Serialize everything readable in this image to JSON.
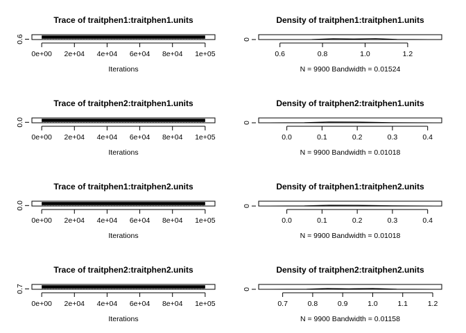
{
  "chart_data": [
    {
      "type": "line",
      "title": "Trace of traitphen1:traitphen1.units",
      "xlabel": "Iterations",
      "x_ticks": [
        "0e+00",
        "2e+04",
        "4e+04",
        "6e+04",
        "8e+04",
        "1e+05"
      ],
      "x_tick_values": [
        0,
        20000,
        40000,
        60000,
        80000,
        100000
      ],
      "xlim": [
        -6000,
        106000
      ],
      "y_ticks": [
        "0.6"
      ],
      "y_tick_values": [
        0.6
      ],
      "ylim": [
        0.55,
        1.35
      ],
      "grid": false,
      "series": [
        {
          "x": [
            0,
            100000
          ],
          "y": [
            0.6,
            0.6
          ]
        }
      ]
    },
    {
      "type": "area",
      "title": "Density of traitphen1:traitphen1.units",
      "xlabel": "N = 9900   Bandwidth = 0.01524",
      "x_ticks": [
        "0.6",
        "0.8",
        "1.0",
        "1.2"
      ],
      "x_tick_values": [
        0.6,
        0.8,
        1.0,
        1.2
      ],
      "xlim": [
        0.5,
        1.36
      ],
      "y_ticks": [
        "0"
      ],
      "y_tick_values": [
        0
      ],
      "ylim": [
        0,
        6
      ],
      "grid": false,
      "series": [
        {
          "x": [
            0.55,
            0.75,
            0.85,
            0.95,
            1.05,
            1.15,
            1.3
          ],
          "y": [
            0,
            0.1,
            1.0,
            0.8,
            1.2,
            0.2,
            0
          ]
        }
      ]
    },
    {
      "type": "line",
      "title": "Trace of traitphen2:traitphen1.units",
      "xlabel": "Iterations",
      "x_ticks": [
        "0e+00",
        "2e+04",
        "4e+04",
        "6e+04",
        "8e+04",
        "1e+05"
      ],
      "x_tick_values": [
        0,
        20000,
        40000,
        60000,
        80000,
        100000
      ],
      "xlim": [
        -6000,
        106000
      ],
      "y_ticks": [
        "0.0"
      ],
      "y_tick_values": [
        0.0
      ],
      "ylim": [
        -0.05,
        0.45
      ],
      "grid": false,
      "series": [
        {
          "x": [
            0,
            100000
          ],
          "y": [
            0.0,
            0.0
          ]
        }
      ]
    },
    {
      "type": "area",
      "title": "Density of traitphen2:traitphen1.units",
      "xlabel": "N = 9900   Bandwidth = 0.01018",
      "x_ticks": [
        "0.0",
        "0.1",
        "0.2",
        "0.3",
        "0.4"
      ],
      "x_tick_values": [
        0.0,
        0.1,
        0.2,
        0.3,
        0.4
      ],
      "xlim": [
        -0.08,
        0.44
      ],
      "y_ticks": [
        "0"
      ],
      "y_tick_values": [
        0
      ],
      "ylim": [
        0,
        6
      ],
      "grid": false,
      "series": [
        {
          "x": [
            -0.05,
            0.05,
            0.12,
            0.2,
            0.3,
            0.42
          ],
          "y": [
            0,
            0.2,
            1.0,
            0.9,
            0.3,
            0
          ]
        }
      ]
    },
    {
      "type": "line",
      "title": "Trace of traitphen1:traitphen2.units",
      "xlabel": "Iterations",
      "x_ticks": [
        "0e+00",
        "2e+04",
        "4e+04",
        "6e+04",
        "8e+04",
        "1e+05"
      ],
      "x_tick_values": [
        0,
        20000,
        40000,
        60000,
        80000,
        100000
      ],
      "xlim": [
        -6000,
        106000
      ],
      "y_ticks": [
        "0.0"
      ],
      "y_tick_values": [
        0.0
      ],
      "ylim": [
        -0.05,
        0.45
      ],
      "grid": false,
      "series": [
        {
          "x": [
            0,
            100000
          ],
          "y": [
            0.0,
            0.0
          ]
        }
      ]
    },
    {
      "type": "area",
      "title": "Density of traitphen1:traitphen2.units",
      "xlabel": "N = 9900   Bandwidth = 0.01018",
      "x_ticks": [
        "0.0",
        "0.1",
        "0.2",
        "0.3",
        "0.4"
      ],
      "x_tick_values": [
        0.0,
        0.1,
        0.2,
        0.3,
        0.4
      ],
      "xlim": [
        -0.08,
        0.44
      ],
      "y_ticks": [
        "0"
      ],
      "y_tick_values": [
        0
      ],
      "ylim": [
        0,
        6
      ],
      "grid": false,
      "series": [
        {
          "x": [
            -0.05,
            0.05,
            0.12,
            0.2,
            0.3,
            0.42
          ],
          "y": [
            0,
            0.2,
            1.0,
            0.9,
            0.3,
            0
          ]
        }
      ]
    },
    {
      "type": "line",
      "title": "Trace of traitphen2:traitphen2.units",
      "xlabel": "Iterations",
      "x_ticks": [
        "0e+00",
        "2e+04",
        "4e+04",
        "6e+04",
        "8e+04",
        "1e+05"
      ],
      "x_tick_values": [
        0,
        20000,
        40000,
        60000,
        80000,
        100000
      ],
      "xlim": [
        -6000,
        106000
      ],
      "y_ticks": [
        "0.7"
      ],
      "y_tick_values": [
        0.7
      ],
      "ylim": [
        0.65,
        1.25
      ],
      "grid": false,
      "series": [
        {
          "x": [
            0,
            100000
          ],
          "y": [
            0.7,
            0.7
          ]
        }
      ]
    },
    {
      "type": "area",
      "title": "Density of traitphen2:traitphen2.units",
      "xlabel": "N = 9900   Bandwidth = 0.01158",
      "x_ticks": [
        "0.7",
        "0.8",
        "0.9",
        "1.0",
        "1.1",
        "1.2"
      ],
      "x_tick_values": [
        0.7,
        0.8,
        0.9,
        1.0,
        1.1,
        1.2
      ],
      "xlim": [
        0.62,
        1.23
      ],
      "y_ticks": [
        "0"
      ],
      "y_tick_values": [
        0
      ],
      "ylim": [
        0,
        6
      ],
      "grid": false,
      "series": [
        {
          "x": [
            0.65,
            0.78,
            0.85,
            0.92,
            1.0,
            1.08,
            1.2
          ],
          "y": [
            0,
            0.2,
            1.0,
            0.7,
            1.1,
            0.2,
            0
          ]
        }
      ]
    }
  ]
}
